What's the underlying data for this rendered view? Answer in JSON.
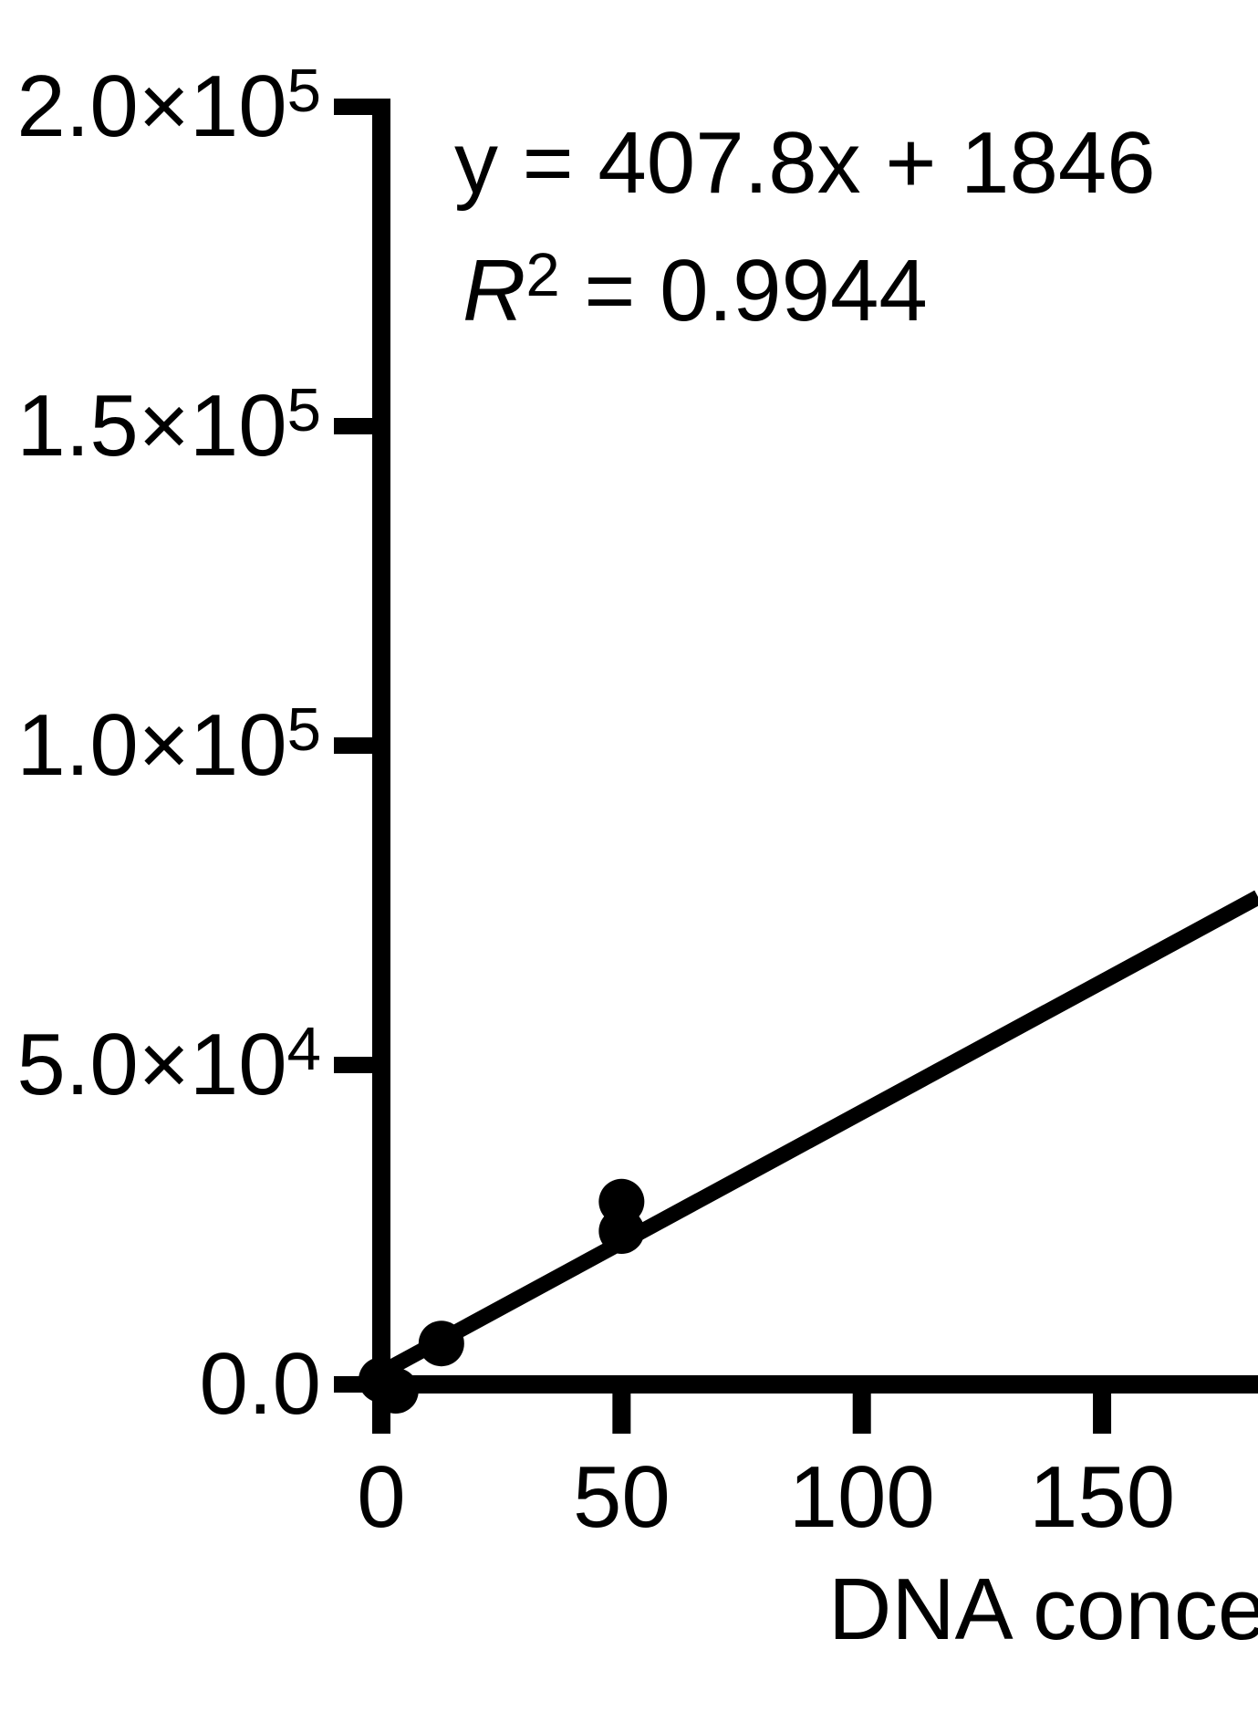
{
  "figure": {
    "background_color": "#ffffff",
    "ink_color": "#000000"
  },
  "annotation": {
    "equation": "y = 407.8x + 1846",
    "r_base": "R",
    "r_sup": "2",
    "r_rest": " = 0.9944"
  },
  "chart_data": {
    "type": "scatter",
    "title": "",
    "xlabel": "DNA conce",
    "ylabel": "",
    "x_ticks": [
      0,
      50,
      100,
      150
    ],
    "x_tick_labels": [
      "0",
      "50",
      "100",
      "150"
    ],
    "y_ticks": [
      0,
      50000,
      100000,
      150000,
      200000
    ],
    "y_tick_labels": [
      {
        "base": "0.0",
        "sup": ""
      },
      {
        "base": "5.0×10",
        "sup": "4"
      },
      {
        "base": "1.0×10",
        "sup": "5"
      },
      {
        "base": "1.5×10",
        "sup": "5"
      },
      {
        "base": "2.0×10",
        "sup": "5"
      }
    ],
    "xlim": [
      0,
      182.5
    ],
    "ylim": [
      0,
      200000
    ],
    "grid": false,
    "legend": "none",
    "marker_color": "#000000",
    "line_color": "#000000",
    "points": [
      {
        "x": 0,
        "y": 700
      },
      {
        "x": 3,
        "y": -1000
      },
      {
        "x": 12.5,
        "y": 6400
      },
      {
        "x": 50,
        "y": 24000
      },
      {
        "x": 50,
        "y": 28600
      }
    ],
    "regression": {
      "slope": 407.8,
      "intercept": 1846,
      "r2": 0.9944,
      "x_range": [
        0,
        182.5
      ]
    }
  }
}
